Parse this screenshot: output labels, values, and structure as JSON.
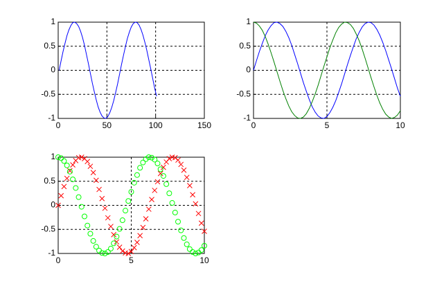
{
  "chart_data": [
    {
      "type": "line",
      "grid": true,
      "x": [
        1,
        3,
        5,
        7,
        9,
        11,
        13,
        15,
        17,
        19,
        21,
        23,
        25,
        27,
        29,
        31,
        33,
        35,
        37,
        39,
        41,
        43,
        45,
        47,
        49,
        51,
        53,
        55,
        57,
        59,
        61,
        63,
        65,
        67,
        69,
        71,
        73,
        75,
        77,
        79,
        81,
        83,
        85,
        87,
        89,
        91,
        93,
        95,
        97,
        99,
        101
      ],
      "series": [
        {
          "color": "#0000ff",
          "values": [
            0,
            0.2,
            0.39,
            0.56,
            0.72,
            0.84,
            0.93,
            0.99,
            1.0,
            0.97,
            0.91,
            0.81,
            0.68,
            0.52,
            0.33,
            0.14,
            -0.06,
            -0.26,
            -0.44,
            -0.61,
            -0.76,
            -0.87,
            -0.95,
            -0.99,
            -1.0,
            -0.96,
            -0.88,
            -0.77,
            -0.63,
            -0.46,
            -0.28,
            -0.08,
            0.12,
            0.31,
            0.49,
            0.66,
            0.79,
            0.9,
            0.97,
            1.0,
            0.99,
            0.94,
            0.85,
            0.73,
            0.58,
            0.41,
            0.22,
            0.03,
            -0.17,
            -0.37,
            -0.54
          ]
        }
      ],
      "xlim": [
        0,
        150
      ],
      "xticks": [
        0,
        50,
        100,
        150
      ],
      "ylim": [
        -1,
        1
      ],
      "yticks": [
        -1,
        -0.5,
        0,
        0.5,
        1
      ]
    },
    {
      "type": "line",
      "grid": true,
      "x": [
        0,
        0.2,
        0.4,
        0.6,
        0.8,
        1,
        1.2,
        1.4,
        1.6,
        1.8,
        2,
        2.2,
        2.4,
        2.6,
        2.8,
        3,
        3.2,
        3.4,
        3.6,
        3.8,
        4,
        4.2,
        4.4,
        4.6,
        4.8,
        5,
        5.2,
        5.4,
        5.6,
        5.8,
        6,
        6.2,
        6.4,
        6.6,
        6.8,
        7,
        7.2,
        7.4,
        7.6,
        7.8,
        8,
        8.2,
        8.4,
        8.6,
        8.8,
        9,
        9.2,
        9.4,
        9.6,
        9.8,
        10
      ],
      "series": [
        {
          "color": "#0000ff",
          "values": [
            0,
            0.2,
            0.39,
            0.56,
            0.72,
            0.84,
            0.93,
            0.99,
            1.0,
            0.97,
            0.91,
            0.81,
            0.68,
            0.52,
            0.33,
            0.14,
            -0.06,
            -0.26,
            -0.44,
            -0.61,
            -0.76,
            -0.87,
            -0.95,
            -0.99,
            -1.0,
            -0.96,
            -0.88,
            -0.77,
            -0.63,
            -0.46,
            -0.28,
            -0.08,
            0.12,
            0.31,
            0.49,
            0.66,
            0.79,
            0.9,
            0.97,
            1.0,
            0.99,
            0.94,
            0.85,
            0.73,
            0.58,
            0.41,
            0.22,
            0.03,
            -0.17,
            -0.37,
            -0.54
          ]
        },
        {
          "color": "#008000",
          "values": [
            1.0,
            0.98,
            0.92,
            0.83,
            0.7,
            0.54,
            0.36,
            0.17,
            -0.03,
            -0.23,
            -0.42,
            -0.59,
            -0.74,
            -0.86,
            -0.94,
            -0.99,
            -1.0,
            -0.97,
            -0.9,
            -0.79,
            -0.65,
            -0.49,
            -0.31,
            -0.11,
            0.09,
            0.28,
            0.47,
            0.63,
            0.78,
            0.89,
            0.96,
            1.0,
            0.99,
            0.95,
            0.87,
            0.75,
            0.61,
            0.44,
            0.25,
            0.05,
            -0.15,
            -0.34,
            -0.52,
            -0.68,
            -0.81,
            -0.91,
            -0.97,
            -1.0,
            -0.98,
            -0.93,
            -0.84
          ]
        }
      ],
      "xlim": [
        0,
        10
      ],
      "xticks": [
        0,
        5,
        10
      ],
      "ylim": [
        -1,
        1
      ],
      "yticks": [
        -1,
        -0.5,
        0,
        0.5,
        1
      ]
    },
    {
      "type": "scatter",
      "grid": true,
      "x": [
        0,
        0.2,
        0.4,
        0.6,
        0.8,
        1,
        1.2,
        1.4,
        1.6,
        1.8,
        2,
        2.2,
        2.4,
        2.6,
        2.8,
        3,
        3.2,
        3.4,
        3.6,
        3.8,
        4,
        4.2,
        4.4,
        4.6,
        4.8,
        5,
        5.2,
        5.4,
        5.6,
        5.8,
        6,
        6.2,
        6.4,
        6.6,
        6.8,
        7,
        7.2,
        7.4,
        7.6,
        7.8,
        8,
        8.2,
        8.4,
        8.6,
        8.8,
        9,
        9.2,
        9.4,
        9.6,
        9.8,
        10
      ],
      "series": [
        {
          "color": "#ff0000",
          "marker": "x",
          "values": [
            0,
            0.2,
            0.39,
            0.56,
            0.72,
            0.84,
            0.93,
            0.99,
            1.0,
            0.97,
            0.91,
            0.81,
            0.68,
            0.52,
            0.33,
            0.14,
            -0.06,
            -0.26,
            -0.44,
            -0.61,
            -0.76,
            -0.87,
            -0.95,
            -0.99,
            -1.0,
            -0.96,
            -0.88,
            -0.77,
            -0.63,
            -0.46,
            -0.28,
            -0.08,
            0.12,
            0.31,
            0.49,
            0.66,
            0.79,
            0.9,
            0.97,
            1.0,
            0.99,
            0.94,
            0.85,
            0.73,
            0.58,
            0.41,
            0.22,
            0.03,
            -0.17,
            -0.37,
            -0.54
          ]
        },
        {
          "color": "#00ff00",
          "marker": "o",
          "values": [
            1.0,
            0.98,
            0.92,
            0.83,
            0.7,
            0.54,
            0.36,
            0.17,
            -0.03,
            -0.23,
            -0.42,
            -0.59,
            -0.74,
            -0.86,
            -0.94,
            -0.99,
            -1.0,
            -0.97,
            -0.9,
            -0.79,
            -0.65,
            -0.49,
            -0.31,
            -0.11,
            0.09,
            0.28,
            0.47,
            0.63,
            0.78,
            0.89,
            0.96,
            1.0,
            0.99,
            0.95,
            0.87,
            0.75,
            0.61,
            0.44,
            0.25,
            0.05,
            -0.15,
            -0.34,
            -0.52,
            -0.68,
            -0.81,
            -0.91,
            -0.97,
            -1.0,
            -0.98,
            -0.93,
            -0.84
          ]
        }
      ],
      "xlim": [
        0,
        10
      ],
      "xticks": [
        0,
        5,
        10
      ],
      "ylim": [
        -1,
        1
      ],
      "yticks": [
        -1,
        -0.5,
        0,
        0.5,
        1
      ]
    }
  ]
}
